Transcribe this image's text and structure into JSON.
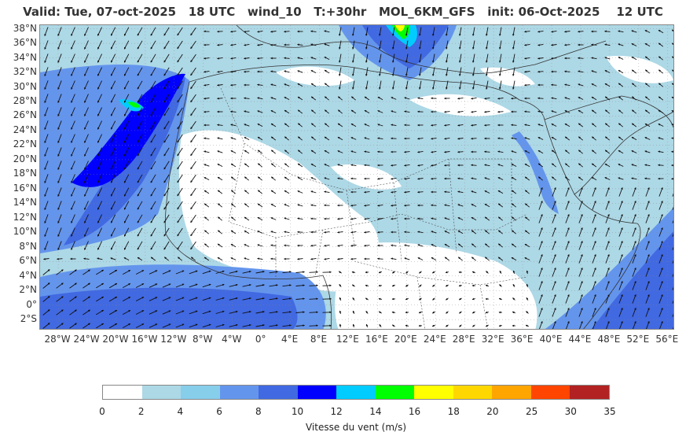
{
  "title": "Valid: Tue, 07-oct-2025   18 UTC   wind_10   T:+30hr   MOL_6KM_GFS   init: 06-Oct-2025    12 UTC",
  "map": {
    "lat_labels": [
      "38°N",
      "36°N",
      "34°N",
      "32°N",
      "30°N",
      "28°N",
      "26°N",
      "24°N",
      "22°N",
      "20°N",
      "18°N",
      "16°N",
      "14°N",
      "12°N",
      "10°N",
      "8°N",
      "6°N",
      "4°N",
      "2°N",
      "0°",
      "2°S"
    ],
    "lon_labels": [
      "28°W",
      "24°W",
      "20°W",
      "16°W",
      "12°W",
      "8°W",
      "4°W",
      "0°",
      "4°E",
      "8°E",
      "12°E",
      "16°E",
      "20°E",
      "24°E",
      "28°E",
      "32°E",
      "36°E",
      "40°E",
      "44°E",
      "48°E",
      "52°E",
      "56°E"
    ],
    "lat_range": [
      -3.5,
      38.5
    ],
    "lon_range": [
      -30.5,
      57
    ],
    "colors": {
      "land_calm": "#ffffff",
      "light": "#add8e6",
      "sky": "#87ceeb",
      "cornflower": "#6495ed",
      "royal": "#4169e1",
      "blue": "#0000ff",
      "cyan": "#00ccff",
      "green": "#00ff00",
      "yellow": "#ffff00",
      "border": "#333333"
    }
  },
  "colorbar": {
    "ticks": [
      "0",
      "2",
      "4",
      "6",
      "8",
      "10",
      "12",
      "14",
      "16",
      "18",
      "20",
      "25",
      "30",
      "35"
    ],
    "colors": [
      "#ffffff",
      "#add8e6",
      "#87ceeb",
      "#6495ed",
      "#4169e1",
      "#0000ff",
      "#00ccff",
      "#00ff00",
      "#ffff00",
      "#ffd700",
      "#ffa500",
      "#ff4500",
      "#b22222"
    ],
    "label": "Vitesse du vent (m/s)"
  }
}
